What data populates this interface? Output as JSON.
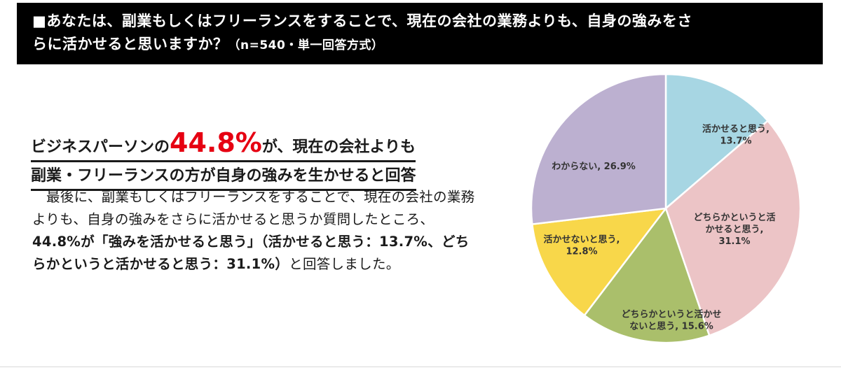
{
  "header": {
    "question_line1": "■あなたは、副業もしくはフリーランスをすることで、現在の会社の業務よりも、自身の強みをさ",
    "question_line2": "らに活かせると思いますか？",
    "note": "（n=540・単一回答方式）"
  },
  "headline": {
    "pre": "ビジネスパーソンの",
    "percent": "44.8%",
    "post": "が、現在の会社よりも",
    "line2": "副業・フリーランスの方が自身の強みを生かせると回答"
  },
  "body": {
    "p1": "最後に、副業もしくはフリーランスをすることで、現在の会社の業務よりも、自身の強みをさらに活かせると思うか質問したところ、",
    "bold1": "44.8%が「強みを活かせると思う」（活かせると思う：13.7%、どちらかというと活かせると思う：31.1%）",
    "p2": "と回答しました。"
  },
  "colors": {
    "accent_red": "#e60012",
    "slice1": "#a7d6e3",
    "slice2": "#ecc4c6",
    "slice3": "#aabf6b",
    "slice4": "#f8d74a",
    "slice5": "#bcb0d0"
  },
  "chart_data": {
    "type": "pie",
    "start": "12 o'clock, clockwise",
    "slices": [
      {
        "label": "活かせると思う",
        "value": 13.7,
        "value_label": "13.7%",
        "color": "#a7d6e3"
      },
      {
        "label": "どちらかというと活かせると思う",
        "value": 31.1,
        "value_label": "31.1%",
        "color": "#ecc4c6"
      },
      {
        "label": "どちらかというと活かせないと思う",
        "value": 15.6,
        "value_label": "15.6%",
        "color": "#aabf6b"
      },
      {
        "label": "活かせないと思う",
        "value": 12.8,
        "value_label": "12.8%",
        "color": "#f8d74a"
      },
      {
        "label": "わからない",
        "value": 26.9,
        "value_label": "26.9%",
        "color": "#bcb0d0"
      }
    ],
    "label_texts": [
      [
        "活かせると思う,",
        "13.7%"
      ],
      [
        "どちらかというと活",
        "かせると思う,",
        "31.1%"
      ],
      [
        "どちらかというと活かせ",
        "ないと思う, 15.6%"
      ],
      [
        "活かせないと思う,",
        "12.8%"
      ],
      [
        "わからない, 26.9%"
      ]
    ]
  }
}
